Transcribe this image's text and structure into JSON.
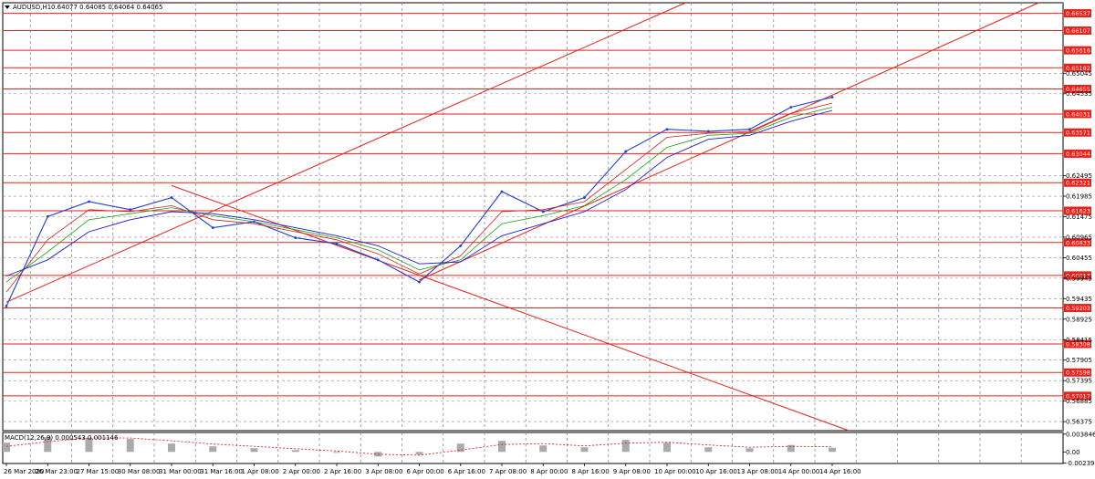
{
  "header": {
    "symbol": "AUDUSD,H1",
    "ohlc": "0.64077 0.64085 0.64064 0.64065"
  },
  "macd_header": "MACD(12,26,9) 0.000543 0.001146",
  "colors": {
    "price": "#1f3fd6",
    "ma_fast": "#d42020",
    "ma_mid": "#1fa01f",
    "ma_slow": "#1d1dd8",
    "level": "#e8211b",
    "grid": "#8c8c8c",
    "macd_signal": "#e8211b",
    "macd_hist": "#aaaaaa"
  },
  "chart_data": [
    {
      "type": "line",
      "title": "AUDUSD,H1",
      "x": [
        "26 Mar 2020",
        "26 Mar 23:00",
        "27 Mar 15:00",
        "30 Mar 08:00",
        "31 Mar 00:00",
        "31 Mar 16:00",
        "1 Apr 08:00",
        "2 Apr 00:00",
        "2 Apr 16:00",
        "3 Apr 08:00",
        "6 Apr 00:00",
        "6 Apr 16:00",
        "7 Apr 08:00",
        "8 Apr 00:00",
        "8 Apr 16:00",
        "9 Apr 08:00",
        "10 Apr 00:00",
        "10 Apr 16:00",
        "13 Apr 08:00",
        "14 Apr 00:00",
        "14 Apr 16:00"
      ],
      "series": [
        {
          "values": [
            0.5925,
            0.6148,
            0.6185,
            0.6165,
            0.6195,
            0.612,
            0.6135,
            0.6095,
            0.608,
            0.604,
            0.5985,
            0.6075,
            0.621,
            0.616,
            0.6195,
            0.631,
            0.6365,
            0.636,
            0.6365,
            0.642,
            0.6445
          ]
        },
        {
          "values": [
            0.596,
            0.609,
            0.6165,
            0.616,
            0.6175,
            0.614,
            0.613,
            0.611,
            0.609,
            0.6055,
            0.6005,
            0.605,
            0.616,
            0.6165,
            0.6185,
            0.6265,
            0.6345,
            0.6355,
            0.636,
            0.6405,
            0.643
          ]
        },
        {
          "values": [
            0.5985,
            0.606,
            0.614,
            0.6155,
            0.617,
            0.615,
            0.6135,
            0.6115,
            0.6095,
            0.6065,
            0.6015,
            0.604,
            0.613,
            0.615,
            0.6175,
            0.624,
            0.632,
            0.635,
            0.6355,
            0.6395,
            0.642
          ]
        },
        {
          "values": [
            0.6,
            0.604,
            0.611,
            0.614,
            0.616,
            0.6155,
            0.614,
            0.612,
            0.61,
            0.6075,
            0.603,
            0.6035,
            0.61,
            0.613,
            0.616,
            0.6215,
            0.6295,
            0.634,
            0.635,
            0.6385,
            0.6412
          ]
        }
      ],
      "levels": [
        "0.66537",
        "0.66107",
        "0.65616",
        "0.65182",
        "0.64655",
        "0.64031",
        "0.63571",
        "0.63044",
        "0.62321",
        "0.61623",
        "0.60833",
        "0.60013",
        "0.59203",
        "0.58308",
        "0.57598",
        "0.57017"
      ],
      "y_ticks": [
        "0.65045",
        "0.64535",
        "0.62495",
        "0.61985",
        "0.61475",
        "0.60965",
        "0.60455",
        "0.59945",
        "0.59435",
        "0.58925",
        "0.58415",
        "0.57905",
        "0.57395",
        "0.56885",
        "0.56375"
      ],
      "ylim": [
        0.5615,
        0.668
      ],
      "trendlines": [
        {
          "from": [
            "26 Mar 2020",
            0.5935
          ],
          "to": [
            "10 Apr 16:00",
            0.6705
          ]
        },
        {
          "from": [
            "6 Apr 00:00",
            0.599
          ],
          "to": [
            "14 Apr 16:00",
            0.645
          ]
        },
        {
          "from": [
            "31 Mar 00:00",
            0.6225
          ],
          "to": [
            "14 Apr 16:00",
            0.563
          ]
        }
      ],
      "grid": true
    },
    {
      "type": "bar",
      "title": "MACD(12,26,9) 0.000543 0.001146",
      "y_ticks": [
        "0.003846",
        "0.00",
        "-0.002395"
      ],
      "ylim": [
        -0.0025,
        0.0042
      ],
      "hist": [
        0.002,
        0.0032,
        0.003,
        0.0028,
        0.0018,
        0.0012,
        0.0008,
        0.0004,
        -0.0002,
        -0.001,
        -0.0006,
        0.0018,
        0.0024,
        0.0014,
        0.001,
        0.0026,
        0.002,
        0.001,
        0.0008,
        0.0015,
        0.0009
      ],
      "signal": [
        0.0012,
        0.0022,
        0.003,
        0.003,
        0.0024,
        0.0017,
        0.0012,
        0.0007,
        0.0002,
        -0.0005,
        -0.0007,
        0.0004,
        0.0016,
        0.0018,
        0.0013,
        0.0019,
        0.0021,
        0.0015,
        0.001,
        0.0012,
        0.0011
      ]
    }
  ]
}
